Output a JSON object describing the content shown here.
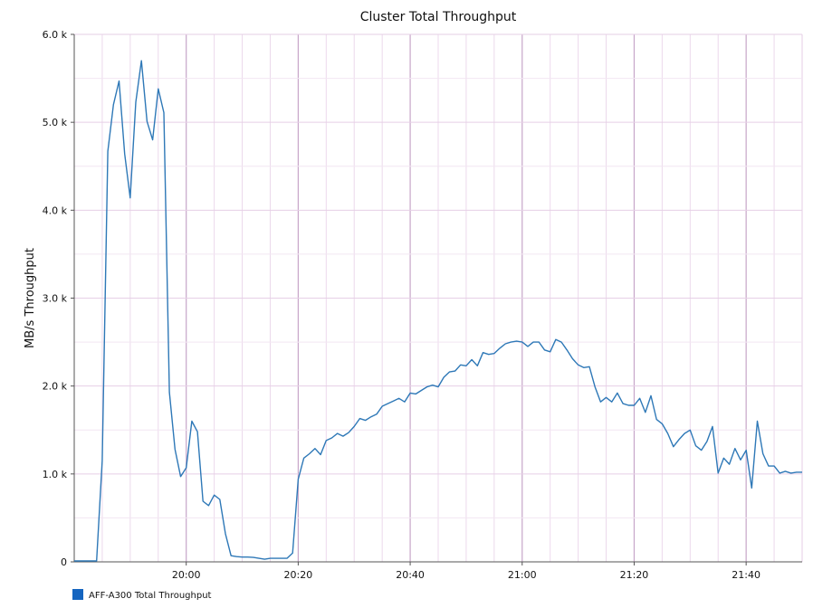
{
  "chart_data": {
    "type": "line",
    "title": "Cluster Total Throughput",
    "xlabel": "",
    "ylabel": "MB/s Throughput",
    "ylim": [
      0,
      6000
    ],
    "xlim": [
      "19:40",
      "21:50"
    ],
    "y_ticks": [
      "0",
      "1.0 k",
      "2.0 k",
      "3.0 k",
      "4.0 k",
      "5.0 k",
      "6.0 k"
    ],
    "y_tick_values": [
      0,
      1000,
      2000,
      3000,
      4000,
      5000,
      6000
    ],
    "x_ticks": [
      "20:00",
      "20:20",
      "20:40",
      "21:00",
      "21:20",
      "21:40"
    ],
    "x_tick_minutes": [
      20,
      40,
      60,
      80,
      100,
      120
    ],
    "grid": true,
    "legend_position": "bottom-left",
    "series": [
      {
        "name": "AFF-A300 Total Throughput",
        "color": "#2e78b7",
        "x_minutes": [
          0,
          1,
          2,
          3,
          4,
          5,
          6,
          7,
          8,
          9,
          10,
          11,
          12,
          13,
          14,
          15,
          16,
          17,
          18,
          19,
          20,
          21,
          22,
          23,
          24,
          25,
          26,
          27,
          28,
          29,
          30,
          31,
          32,
          33,
          34,
          35,
          36,
          37,
          38,
          39,
          40,
          41,
          42,
          43,
          44,
          45,
          46,
          47,
          48,
          49,
          50,
          51,
          52,
          53,
          54,
          55,
          56,
          57,
          58,
          59,
          60,
          61,
          62,
          63,
          64,
          65,
          66,
          67,
          68,
          69,
          70,
          71,
          72,
          73,
          74,
          75,
          76,
          77,
          78,
          79,
          80,
          81,
          82,
          83,
          84,
          85,
          86,
          87,
          88,
          89,
          90,
          91,
          92,
          93,
          94,
          95,
          96,
          97,
          98,
          99,
          100,
          101,
          102,
          103,
          104,
          105,
          106,
          107,
          108,
          109,
          110,
          111,
          112,
          113,
          114,
          115,
          116,
          117,
          118,
          119,
          120,
          121,
          122,
          123,
          124,
          125,
          126,
          127,
          128,
          129,
          130
        ],
        "values": [
          10,
          10,
          10,
          10,
          10,
          1150,
          4670,
          5200,
          5470,
          4640,
          4140,
          5230,
          5700,
          5010,
          4800,
          5380,
          5110,
          1930,
          1280,
          970,
          1070,
          1600,
          1480,
          690,
          640,
          760,
          710,
          320,
          70,
          60,
          55,
          55,
          50,
          40,
          30,
          40,
          40,
          40,
          40,
          100,
          940,
          1180,
          1230,
          1290,
          1220,
          1380,
          1410,
          1460,
          1430,
          1470,
          1540,
          1630,
          1610,
          1650,
          1680,
          1770,
          1800,
          1830,
          1860,
          1820,
          1920,
          1910,
          1950,
          1990,
          2010,
          1990,
          2100,
          2160,
          2170,
          2240,
          2230,
          2300,
          2230,
          2380,
          2360,
          2370,
          2430,
          2480,
          2500,
          2510,
          2500,
          2450,
          2500,
          2500,
          2410,
          2390,
          2530,
          2500,
          2410,
          2310,
          2240,
          2210,
          2220,
          1990,
          1820,
          1870,
          1820,
          1920,
          1800,
          1780,
          1780,
          1860,
          1700,
          1890,
          1620,
          1570,
          1460,
          1310,
          1390,
          1460,
          1500,
          1320,
          1270,
          1370,
          1540,
          1010,
          1180,
          1110,
          1290,
          1160,
          1270,
          840,
          1600,
          1230,
          1090,
          1090,
          1010,
          1030,
          1010,
          1020,
          1020
        ]
      }
    ]
  }
}
